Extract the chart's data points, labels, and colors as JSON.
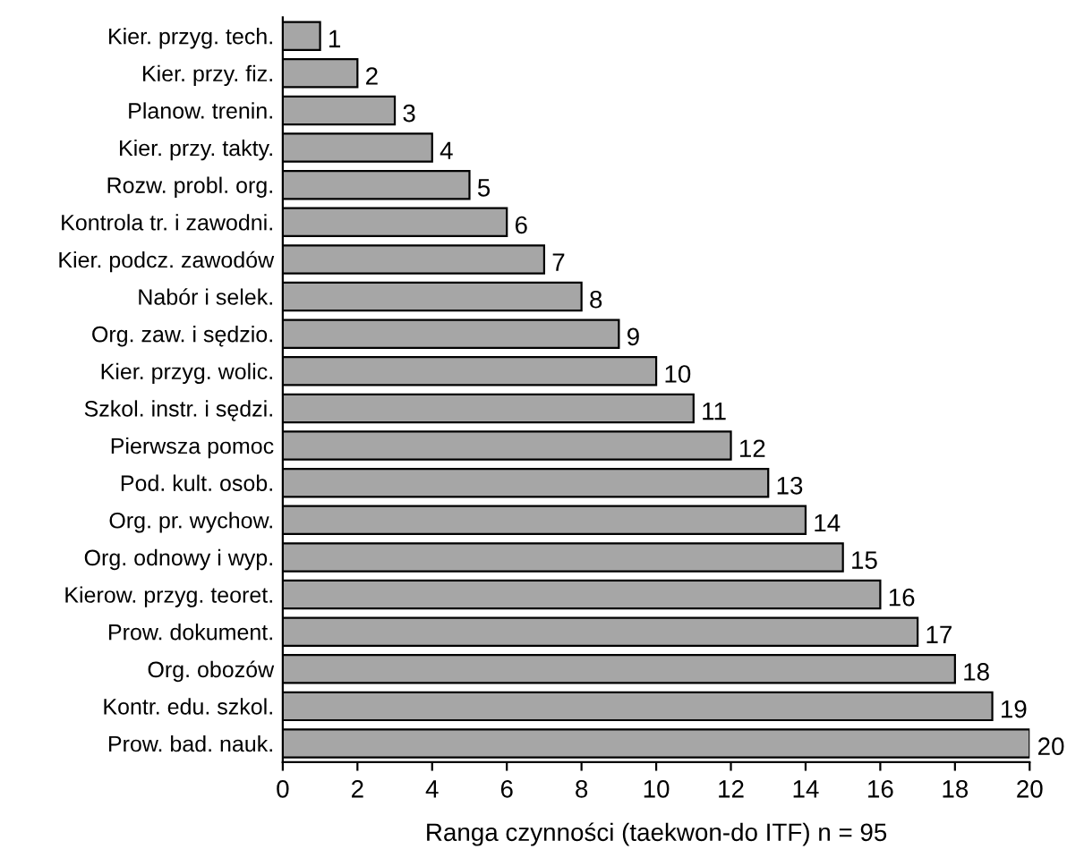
{
  "chart_data": {
    "type": "bar",
    "orientation": "horizontal",
    "xlabel": "Ranga czynności (taekwon-do ITF) n = 95",
    "categories": [
      "Kier. przyg. tech.",
      "Kier. przy. fiz.",
      "Planow. trenin.",
      "Kier. przy. takty.",
      "Rozw. probl. org.",
      "Kontrola tr. i zawodni.",
      "Kier. podcz. zawodów",
      "Nabór i selek.",
      "Org. zaw. i sędzio.",
      "Kier. przyg. wolic.",
      "Szkol. instr. i sędzi.",
      "Pierwsza pomoc",
      "Pod. kult. osob.",
      "Org. pr. wychow.",
      "Org. odnowy i wyp.",
      "Kierow. przyg. teoret.",
      "Prow. dokument.",
      "Org. obozów",
      "Kontr. edu. szkol.",
      "Prow. bad. nauk."
    ],
    "values": [
      1,
      2,
      3,
      4,
      5,
      6,
      7,
      8,
      9,
      10,
      11,
      12,
      13,
      14,
      15,
      16,
      17,
      18,
      19,
      20
    ],
    "color": "#a6a6a6",
    "xlim": [
      0,
      20
    ],
    "xticks": [
      0,
      2,
      4,
      6,
      8,
      10,
      12,
      14,
      16,
      18,
      20
    ],
    "grid": false,
    "legend": false,
    "data_labels": true
  }
}
